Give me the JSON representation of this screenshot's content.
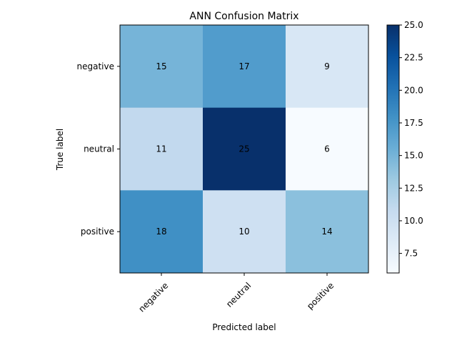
{
  "chart_data": {
    "type": "heatmap",
    "title": "ANN Confusion Matrix",
    "xlabel": "Predicted label",
    "ylabel": "True label",
    "x_categories": [
      "negative",
      "neutral",
      "positive"
    ],
    "y_categories": [
      "negative",
      "neutral",
      "positive"
    ],
    "values": [
      [
        15,
        17,
        9
      ],
      [
        11,
        25,
        6
      ],
      [
        18,
        10,
        14
      ]
    ],
    "colormap": "Blues",
    "colorbar": {
      "min": 6,
      "max": 25,
      "ticks": [
        7.5,
        10.0,
        12.5,
        15.0,
        17.5,
        20.0,
        22.5,
        25.0
      ],
      "tick_labels": [
        "7.5",
        "10.0",
        "12.5",
        "15.0",
        "17.5",
        "20.0",
        "22.5",
        "25.0"
      ]
    },
    "grid": false
  }
}
